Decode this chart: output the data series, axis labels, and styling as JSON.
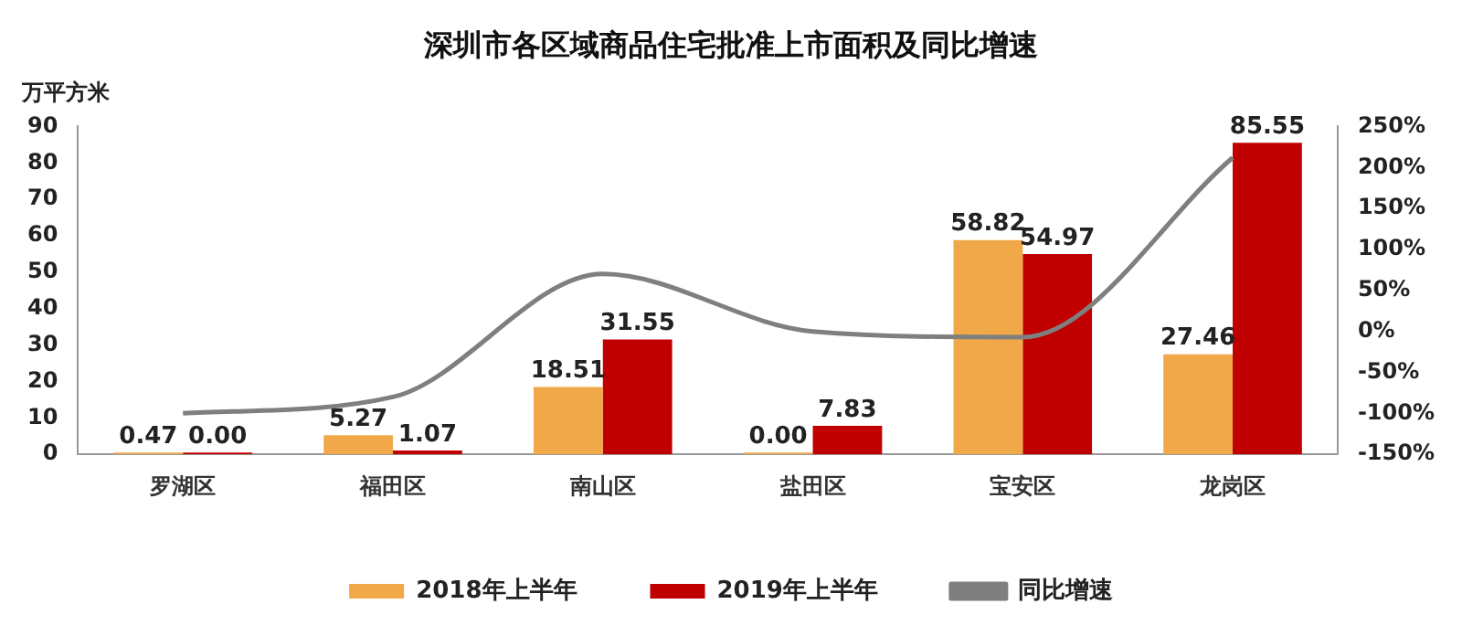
{
  "chart_data": {
    "type": "bar",
    "title": "深圳市各区域商品住宅批准上市面积及同比增速",
    "ylabel": "万平方米",
    "categories": [
      "罗湖区",
      "福田区",
      "南山区",
      "盐田区",
      "宝安区",
      "龙岗区"
    ],
    "series": [
      {
        "name": "2018年上半年",
        "color": "#f0a848",
        "values": [
          0.47,
          5.27,
          18.51,
          0,
          58.82,
          27.46
        ],
        "value_labels": [
          "0.47",
          "5.27",
          "18.51",
          "0.00",
          "58.82",
          "27.46"
        ]
      },
      {
        "name": "2019年上半年",
        "color": "#c00000",
        "values": [
          0,
          1.07,
          31.55,
          7.83,
          54.97,
          85.55
        ],
        "value_labels": [
          "0.00",
          "1.07",
          "31.55",
          "7.83",
          "54.97",
          "85.55"
        ]
      },
      {
        "name": "同比增速",
        "type": "line",
        "axis": "y2",
        "color": "#7f7f7f",
        "values": [
          -100,
          -80,
          70,
          0,
          -7,
          212
        ]
      }
    ],
    "ylim": [
      0,
      90
    ],
    "yticks": [
      0,
      10,
      20,
      30,
      40,
      50,
      60,
      70,
      80,
      90
    ],
    "y2lim": [
      -150,
      250
    ],
    "y2ticks": [
      {
        "value": -150,
        "label": "-150%"
      },
      {
        "value": -100,
        "label": "-100%"
      },
      {
        "value": -50,
        "label": "-50%"
      },
      {
        "value": 0,
        "label": "0%"
      },
      {
        "value": 50,
        "label": "50%"
      },
      {
        "value": 100,
        "label": "100%"
      },
      {
        "value": 150,
        "label": "150%"
      },
      {
        "value": 200,
        "label": "200%"
      },
      {
        "value": 250,
        "label": "250%"
      }
    ],
    "grid": false,
    "legend": "bottom",
    "marker": "none"
  }
}
